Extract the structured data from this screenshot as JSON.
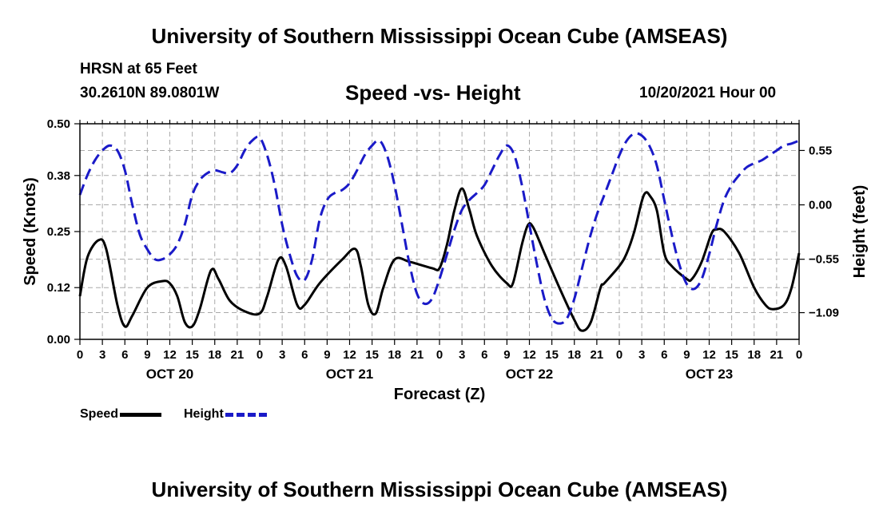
{
  "header": {
    "title": "University of Southern Mississippi Ocean Cube (AMSEAS)",
    "station": "HRSN at 65 Feet",
    "coords": "30.2610N  89.0801W",
    "subtitle": "Speed -vs- Height",
    "datetime": "10/20/2021 Hour 00",
    "footer_title": "University of Southern Mississippi Ocean Cube (AMSEAS)"
  },
  "colors": {
    "speed": "#000000",
    "height": "#1a1ac8",
    "grid": "#aaaaaa"
  },
  "chart_data": {
    "type": "line",
    "title": "Speed -vs- Height",
    "xlabel": "Forecast (Z)",
    "ylabel": "Speed (Knots)",
    "ylabel_right": "Height (feet)",
    "x_hours_range": [
      0,
      96
    ],
    "x_tick_hours": [
      0,
      3,
      6,
      9,
      12,
      15,
      18,
      21,
      24,
      27,
      30,
      33,
      36,
      39,
      42,
      45,
      48,
      51,
      54,
      57,
      60,
      63,
      66,
      69,
      72,
      75,
      78,
      81,
      84,
      87,
      90,
      93,
      96
    ],
    "x_tick_labels": [
      "0",
      "3",
      "6",
      "9",
      "12",
      "15",
      "18",
      "21",
      "0",
      "3",
      "6",
      "9",
      "12",
      "15",
      "18",
      "21",
      "0",
      "3",
      "6",
      "9",
      "12",
      "15",
      "18",
      "21",
      "0",
      "3",
      "6",
      "9",
      "12",
      "15",
      "18",
      "21",
      "0"
    ],
    "day_labels": [
      {
        "hour": 12,
        "label": "OCT 20"
      },
      {
        "hour": 36,
        "label": "OCT 21"
      },
      {
        "hour": 60,
        "label": "OCT 22"
      },
      {
        "hour": 84,
        "label": "OCT 23"
      }
    ],
    "y_left": {
      "range": [
        0,
        0.5
      ],
      "ticks": [
        0.0,
        0.12,
        0.25,
        0.38,
        0.5
      ],
      "tick_labels": [
        "0.00",
        "0.12",
        "0.25",
        "0.38",
        "0.50"
      ]
    },
    "y_right": {
      "range": [
        -1.36,
        0.82
      ],
      "ticks": [
        0.55,
        0.0,
        -0.55,
        -1.09
      ],
      "tick_labels": [
        "0.55",
        "0.00",
        "−0.55",
        "−1.09"
      ]
    },
    "grid": true,
    "series": [
      {
        "name": "Speed",
        "axis": "left",
        "style": "solid",
        "points": [
          [
            0,
            0.1
          ],
          [
            1,
            0.19
          ],
          [
            2.5,
            0.23
          ],
          [
            3.5,
            0.21
          ],
          [
            5,
            0.08
          ],
          [
            6,
            0.03
          ],
          [
            7,
            0.055
          ],
          [
            9,
            0.12
          ],
          [
            11,
            0.135
          ],
          [
            12,
            0.13
          ],
          [
            13,
            0.1
          ],
          [
            14,
            0.04
          ],
          [
            15,
            0.03
          ],
          [
            16,
            0.07
          ],
          [
            17.5,
            0.16
          ],
          [
            18.5,
            0.14
          ],
          [
            20,
            0.09
          ],
          [
            22,
            0.065
          ],
          [
            24,
            0.06
          ],
          [
            25,
            0.1
          ],
          [
            26.5,
            0.185
          ],
          [
            27.5,
            0.17
          ],
          [
            29,
            0.08
          ],
          [
            30,
            0.08
          ],
          [
            32,
            0.13
          ],
          [
            35,
            0.185
          ],
          [
            36.7,
            0.21
          ],
          [
            37.5,
            0.17
          ],
          [
            38.5,
            0.08
          ],
          [
            39.5,
            0.06
          ],
          [
            40.5,
            0.12
          ],
          [
            42,
            0.185
          ],
          [
            44,
            0.18
          ],
          [
            47,
            0.165
          ],
          [
            48,
            0.165
          ],
          [
            49,
            0.22
          ],
          [
            50,
            0.3
          ],
          [
            51,
            0.35
          ],
          [
            52,
            0.3
          ],
          [
            53,
            0.24
          ],
          [
            55,
            0.17
          ],
          [
            57,
            0.13
          ],
          [
            57.8,
            0.13
          ],
          [
            59,
            0.22
          ],
          [
            59.8,
            0.265
          ],
          [
            60.5,
            0.26
          ],
          [
            62,
            0.2
          ],
          [
            64,
            0.12
          ],
          [
            66,
            0.045
          ],
          [
            67,
            0.02
          ],
          [
            68.2,
            0.04
          ],
          [
            69.5,
            0.12
          ],
          [
            70,
            0.13
          ],
          [
            72,
            0.17
          ],
          [
            73,
            0.2
          ],
          [
            74,
            0.25
          ],
          [
            75,
            0.32
          ],
          [
            75.5,
            0.34
          ],
          [
            76,
            0.335
          ],
          [
            77,
            0.3
          ],
          [
            78,
            0.2
          ],
          [
            79,
            0.17
          ],
          [
            81,
            0.14
          ],
          [
            81.7,
            0.14
          ],
          [
            83,
            0.18
          ],
          [
            84.3,
            0.245
          ],
          [
            85,
            0.255
          ],
          [
            86,
            0.25
          ],
          [
            88,
            0.2
          ],
          [
            90,
            0.12
          ],
          [
            91.5,
            0.08
          ],
          [
            92.5,
            0.07
          ],
          [
            94,
            0.08
          ],
          [
            95,
            0.12
          ],
          [
            96,
            0.2
          ]
        ]
      },
      {
        "name": "Height",
        "axis": "right",
        "style": "dashed",
        "points": [
          [
            0,
            0.1
          ],
          [
            1,
            0.3
          ],
          [
            2,
            0.45
          ],
          [
            3,
            0.55
          ],
          [
            4,
            0.6
          ],
          [
            5,
            0.55
          ],
          [
            6,
            0.35
          ],
          [
            7,
            0.0
          ],
          [
            8,
            -0.3
          ],
          [
            9,
            -0.45
          ],
          [
            10,
            -0.55
          ],
          [
            11,
            -0.55
          ],
          [
            12,
            -0.5
          ],
          [
            13,
            -0.4
          ],
          [
            14,
            -0.2
          ],
          [
            15,
            0.1
          ],
          [
            16,
            0.25
          ],
          [
            17,
            0.32
          ],
          [
            18,
            0.35
          ],
          [
            19,
            0.33
          ],
          [
            20,
            0.32
          ],
          [
            21,
            0.4
          ],
          [
            22,
            0.55
          ],
          [
            23,
            0.65
          ],
          [
            24,
            0.68
          ],
          [
            25,
            0.5
          ],
          [
            26,
            0.2
          ],
          [
            27,
            -0.2
          ],
          [
            28,
            -0.5
          ],
          [
            29,
            -0.72
          ],
          [
            30,
            -0.76
          ],
          [
            31,
            -0.55
          ],
          [
            32,
            -0.15
          ],
          [
            33,
            0.05
          ],
          [
            34,
            0.12
          ],
          [
            35,
            0.15
          ],
          [
            36,
            0.22
          ],
          [
            37,
            0.35
          ],
          [
            38,
            0.5
          ],
          [
            39,
            0.6
          ],
          [
            40,
            0.65
          ],
          [
            41,
            0.5
          ],
          [
            42,
            0.2
          ],
          [
            43,
            -0.2
          ],
          [
            44,
            -0.6
          ],
          [
            45,
            -0.9
          ],
          [
            46,
            -1.0
          ],
          [
            47,
            -0.95
          ],
          [
            48,
            -0.75
          ],
          [
            49,
            -0.5
          ],
          [
            50,
            -0.25
          ],
          [
            51,
            -0.05
          ],
          [
            52,
            0.05
          ],
          [
            53,
            0.12
          ],
          [
            54,
            0.2
          ],
          [
            55,
            0.35
          ],
          [
            56,
            0.5
          ],
          [
            57,
            0.6
          ],
          [
            58,
            0.5
          ],
          [
            59,
            0.2
          ],
          [
            60,
            -0.2
          ],
          [
            61,
            -0.6
          ],
          [
            62,
            -0.95
          ],
          [
            63,
            -1.15
          ],
          [
            64,
            -1.2
          ],
          [
            65,
            -1.15
          ],
          [
            66,
            -0.95
          ],
          [
            67,
            -0.65
          ],
          [
            68,
            -0.35
          ],
          [
            69,
            -0.1
          ],
          [
            70,
            0.1
          ],
          [
            71,
            0.3
          ],
          [
            72,
            0.5
          ],
          [
            73,
            0.65
          ],
          [
            74,
            0.72
          ],
          [
            75,
            0.7
          ],
          [
            76,
            0.6
          ],
          [
            77,
            0.4
          ],
          [
            78,
            0.05
          ],
          [
            79,
            -0.3
          ],
          [
            80,
            -0.6
          ],
          [
            81,
            -0.8
          ],
          [
            82,
            -0.85
          ],
          [
            83,
            -0.75
          ],
          [
            84,
            -0.5
          ],
          [
            85,
            -0.2
          ],
          [
            86,
            0.05
          ],
          [
            87,
            0.2
          ],
          [
            88,
            0.3
          ],
          [
            89,
            0.38
          ],
          [
            90,
            0.42
          ],
          [
            91,
            0.45
          ],
          [
            92,
            0.5
          ],
          [
            93,
            0.55
          ],
          [
            94,
            0.6
          ],
          [
            95,
            0.62
          ],
          [
            96,
            0.65
          ]
        ]
      }
    ]
  },
  "legend": {
    "speed_label": "Speed",
    "height_label": "Height"
  }
}
